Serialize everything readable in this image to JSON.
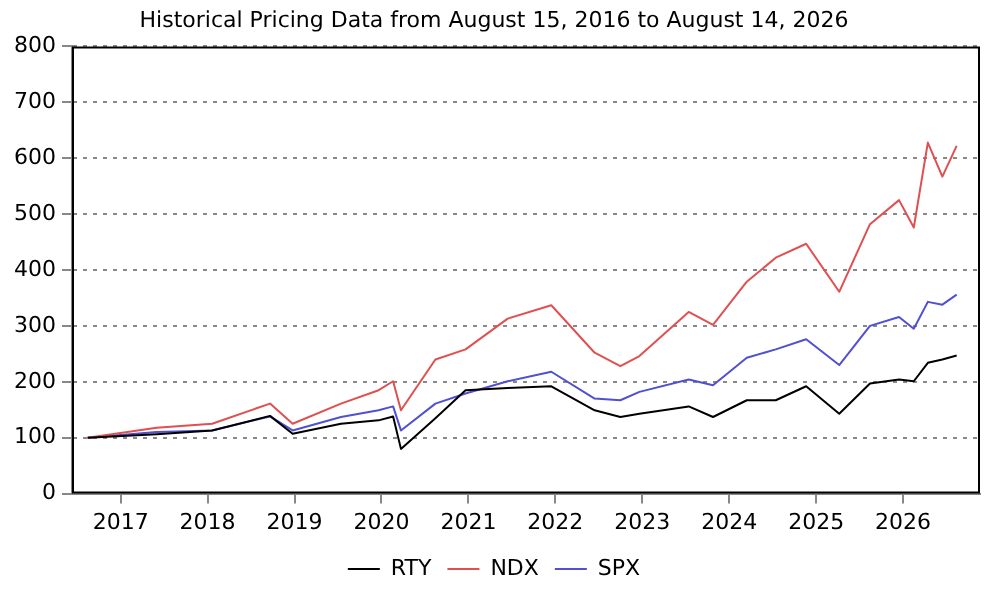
{
  "chart_data": {
    "type": "line",
    "title": "Historical Pricing Data from August 15, 2016 to August 14, 2026",
    "x": [
      "2016-08-15",
      "2017-06-01",
      "2018-01-20",
      "2018-09-20",
      "2018-12-24",
      "2019-07-15",
      "2019-12-20",
      "2020-02-19",
      "2020-03-23",
      "2020-08-15",
      "2020-12-20",
      "2021-06-15",
      "2021-12-15",
      "2022-06-15",
      "2022-10-01",
      "2022-12-20",
      "2023-07-15",
      "2023-10-25",
      "2024-03-15",
      "2024-07-15",
      "2024-11-20",
      "2025-04-08",
      "2025-08-15",
      "2025-12-15",
      "2026-02-15",
      "2026-04-15",
      "2026-06-15",
      "2026-08-14"
    ],
    "series": [
      {
        "name": "RTY",
        "color": "#000000",
        "values": [
          100,
          106,
          113,
          139,
          107,
          125,
          131,
          138,
          80,
          135,
          185,
          189,
          192,
          149,
          137,
          143,
          156,
          137,
          167,
          167,
          192,
          143,
          197,
          204,
          201,
          234,
          240,
          247
        ]
      },
      {
        "name": "NDX",
        "color": "#e05050",
        "values": [
          100,
          118,
          125,
          161,
          125,
          161,
          185,
          201,
          149,
          240,
          258,
          313,
          337,
          252,
          228,
          246,
          325,
          302,
          379,
          422,
          447,
          361,
          482,
          525,
          476,
          628,
          567,
          622
        ]
      },
      {
        "name": "SPX",
        "color": "#5050d0",
        "values": [
          100,
          110,
          113,
          138,
          113,
          137,
          149,
          156,
          113,
          161,
          179,
          201,
          218,
          170,
          167,
          182,
          204,
          194,
          243,
          258,
          276,
          230,
          300,
          316,
          295,
          343,
          338,
          356
        ]
      }
    ],
    "xlim": [
      "2016-06-10",
      "2026-11-20"
    ],
    "xticks": [
      "2017",
      "2018",
      "2019",
      "2020",
      "2021",
      "2022",
      "2023",
      "2024",
      "2025",
      "2026"
    ],
    "ylim": [
      0,
      800
    ],
    "yticks": [
      0,
      100,
      200,
      300,
      400,
      500,
      600,
      700,
      800
    ],
    "grid": "y",
    "legend": "bottom",
    "marker": "none",
    "line_style": "solid"
  }
}
